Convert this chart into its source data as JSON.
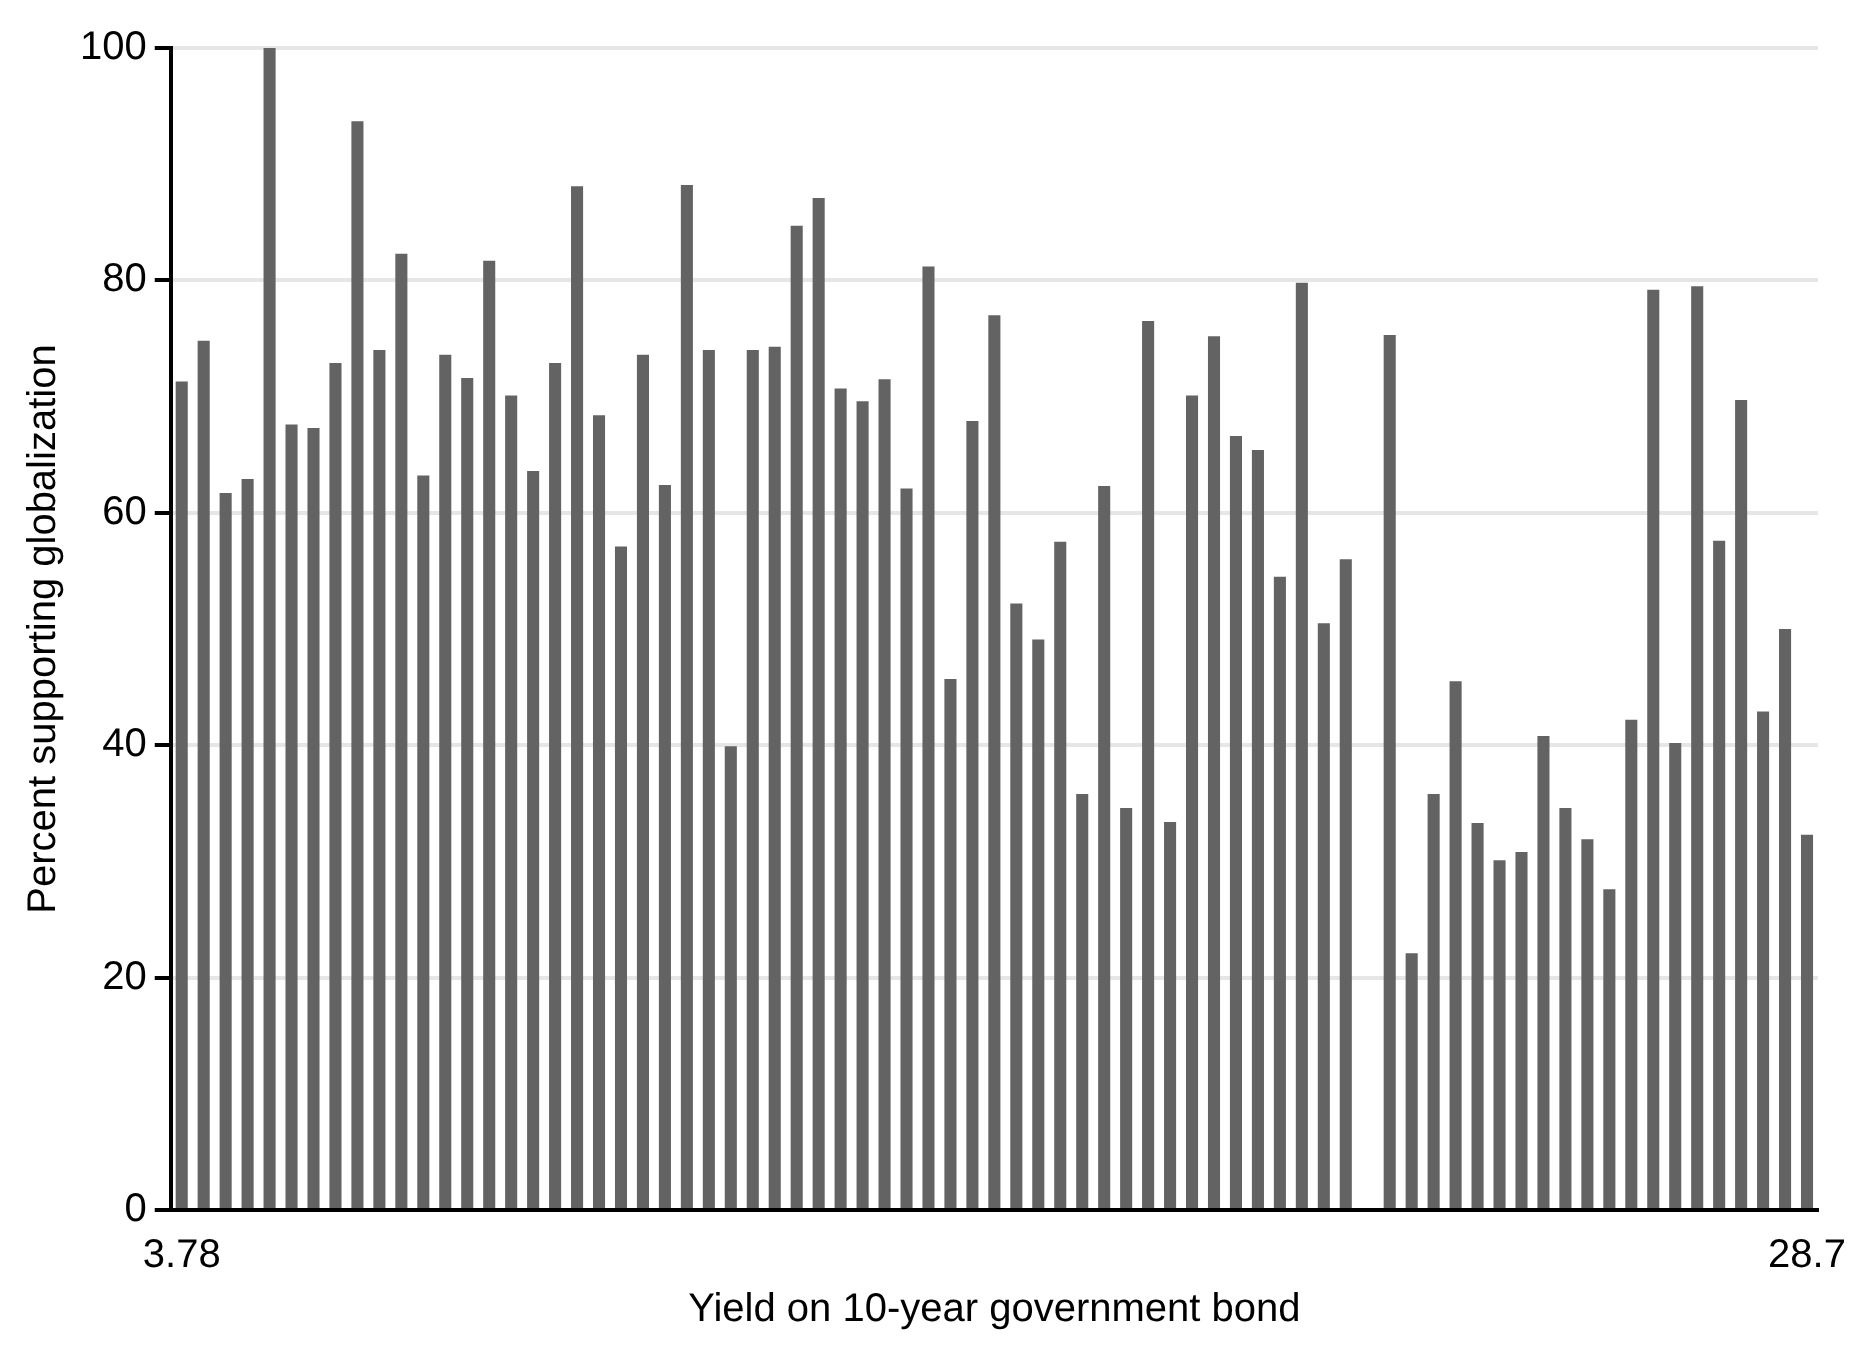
{
  "chart_data": {
    "type": "bar",
    "xlabel": "Yield on 10-year government bond",
    "ylabel": "Percent supporting globalization",
    "categories": [
      "3.78",
      null,
      null,
      null,
      null,
      null,
      null,
      null,
      null,
      null,
      null,
      null,
      null,
      null,
      null,
      null,
      null,
      null,
      null,
      null,
      null,
      null,
      null,
      null,
      null,
      null,
      null,
      null,
      null,
      null,
      null,
      null,
      null,
      null,
      null,
      null,
      null,
      null,
      null,
      null,
      null,
      null,
      null,
      null,
      null,
      null,
      null,
      null,
      null,
      null,
      null,
      null,
      null,
      null,
      null,
      null,
      null,
      null,
      null,
      null,
      null,
      null,
      null,
      null,
      null,
      null,
      null,
      null,
      null,
      null,
      null,
      null,
      null,
      null,
      "28.7"
    ],
    "values": [
      71.3,
      74.8,
      61.7,
      62.9,
      100,
      67.6,
      67.3,
      72.9,
      93.7,
      74.0,
      82.3,
      63.2,
      73.6,
      71.6,
      81.7,
      70.1,
      63.6,
      72.9,
      88.1,
      68.4,
      57.1,
      73.6,
      62.4,
      88.2,
      74.0,
      39.9,
      74.0,
      74.3,
      84.7,
      87.1,
      70.7,
      69.6,
      71.5,
      62.1,
      81.2,
      45.7,
      67.9,
      77.0,
      52.2,
      49.1,
      57.5,
      35.8,
      62.3,
      34.6,
      76.5,
      33.4,
      70.1,
      75.2,
      66.6,
      65.4,
      54.5,
      79.8,
      50.5,
      56.0,
      null,
      75.3,
      22.1,
      35.8,
      45.5,
      33.3,
      30.1,
      30.8,
      40.8,
      34.6,
      31.9,
      27.6,
      42.2,
      79.2,
      40.2,
      79.5,
      57.6,
      69.7,
      42.9,
      50.0,
      32.3
    ],
    "color": "#636363",
    "ylim": [
      0,
      100
    ],
    "yticks": [
      0,
      20,
      40,
      60,
      80,
      100
    ],
    "grid": "y"
  }
}
